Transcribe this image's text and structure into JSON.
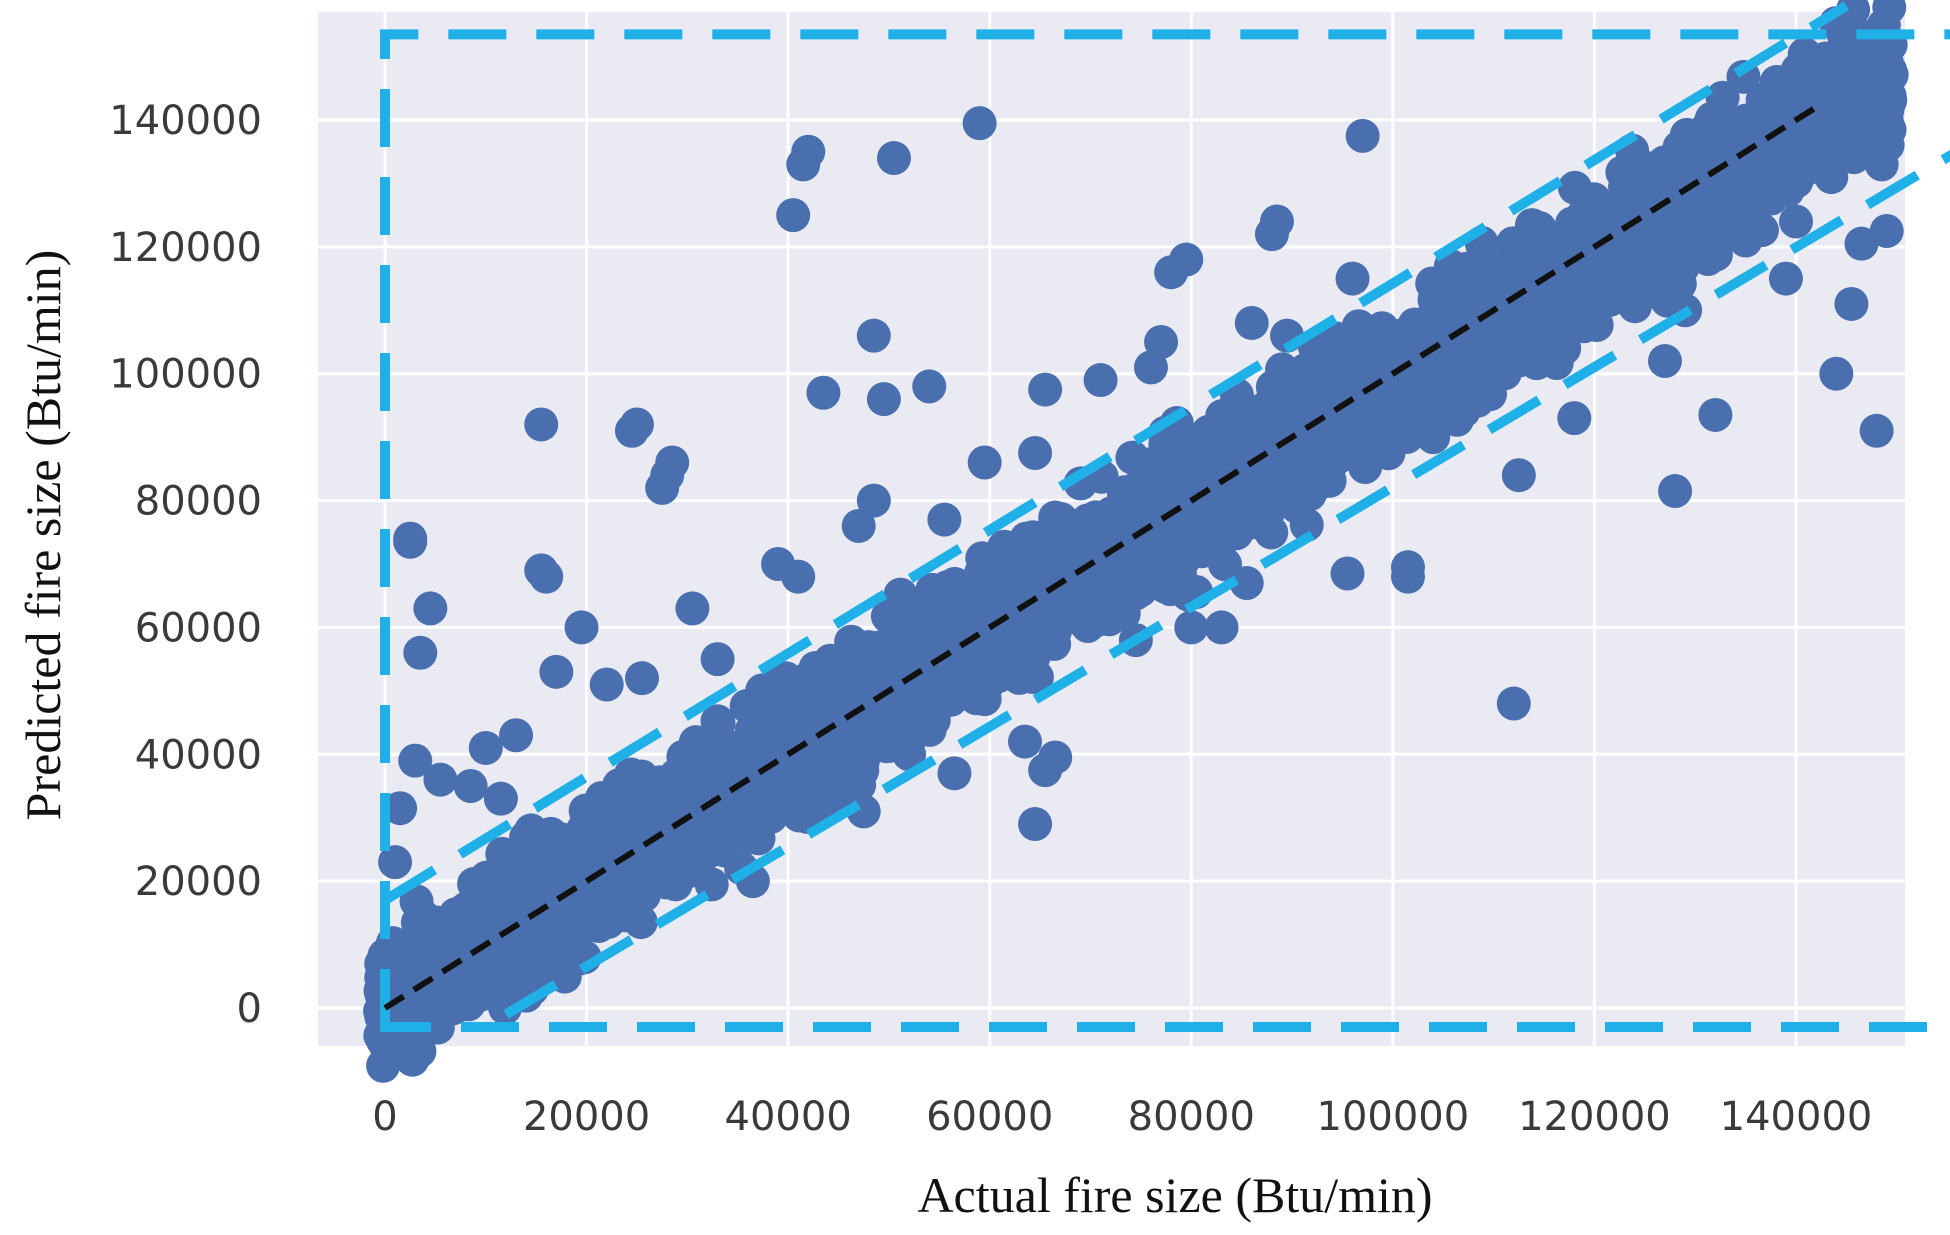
{
  "chart_data": {
    "type": "scatter",
    "title": "",
    "xlabel": "Actual fire size (Btu/min)",
    "ylabel": "Predicted fire size (Btu/min)",
    "xlim": [
      -7000,
      155000
    ],
    "ylim": [
      -6500,
      155000
    ],
    "x_ticks": [
      0,
      20000,
      40000,
      60000,
      80000,
      100000,
      120000,
      140000
    ],
    "y_ticks": [
      0,
      20000,
      40000,
      60000,
      80000,
      100000,
      120000,
      140000
    ],
    "x_tick_labels": [
      "0",
      "20000",
      "40000",
      "60000",
      "80000",
      "100000",
      "120000",
      "140000"
    ],
    "y_tick_labels": [
      "0",
      "20000",
      "40000",
      "60000",
      "80000",
      "100000",
      "120000",
      "140000"
    ],
    "grid": true,
    "legend": "none",
    "colors": {
      "points": "#4a6fae",
      "plot_background": "#eaeaf2",
      "grid": "#ffffff",
      "reference_line": "#111111",
      "band_lines": "#1fb0e8"
    },
    "reference_line": {
      "style": "dashed",
      "color": "#111111",
      "x": [
        0,
        142000
      ],
      "y": [
        0,
        142000
      ]
    },
    "band_lines": [
      {
        "style": "dashed",
        "color": "#1fb0e8",
        "x": [
          0,
          145000
        ],
        "y": [
          17000,
          158000
        ]
      },
      {
        "style": "dashed",
        "color": "#1fb0e8",
        "x": [
          12000,
          157000
        ],
        "y": [
          -1000,
          136000
        ]
      }
    ],
    "outer_box": {
      "style": "dashed",
      "color": "#1fb0e8",
      "x": [
        0,
        157000
      ],
      "y": [
        -3000,
        153500
      ]
    },
    "series": [
      {
        "outliers": [
          {
            "x": 2500,
            "y": 74000
          },
          {
            "x": 2500,
            "y": 73500
          },
          {
            "x": 4500,
            "y": 63000
          },
          {
            "x": 3500,
            "y": 56000
          },
          {
            "x": 15500,
            "y": 92000
          },
          {
            "x": 15500,
            "y": 69000
          },
          {
            "x": 16000,
            "y": 68000
          },
          {
            "x": 17000,
            "y": 53000
          },
          {
            "x": 19500,
            "y": 60000
          },
          {
            "x": 24500,
            "y": 91000
          },
          {
            "x": 25000,
            "y": 92000
          },
          {
            "x": 27500,
            "y": 82000
          },
          {
            "x": 28500,
            "y": 86000
          },
          {
            "x": 28000,
            "y": 84000
          },
          {
            "x": 30500,
            "y": 63000
          },
          {
            "x": 40500,
            "y": 125000
          },
          {
            "x": 41500,
            "y": 133000
          },
          {
            "x": 42000,
            "y": 135000
          },
          {
            "x": 43500,
            "y": 97000
          },
          {
            "x": 48500,
            "y": 106000
          },
          {
            "x": 49500,
            "y": 96000
          },
          {
            "x": 50500,
            "y": 134000
          },
          {
            "x": 54000,
            "y": 98000
          },
          {
            "x": 59000,
            "y": 139500
          },
          {
            "x": 65500,
            "y": 97500
          },
          {
            "x": 64500,
            "y": 29000
          },
          {
            "x": 63500,
            "y": 42000
          },
          {
            "x": 65500,
            "y": 37500
          },
          {
            "x": 66500,
            "y": 39500
          },
          {
            "x": 78000,
            "y": 116000
          },
          {
            "x": 79500,
            "y": 118000
          },
          {
            "x": 80000,
            "y": 60000
          },
          {
            "x": 83000,
            "y": 60000
          },
          {
            "x": 88000,
            "y": 122000
          },
          {
            "x": 88500,
            "y": 124000
          },
          {
            "x": 97000,
            "y": 137500
          },
          {
            "x": 95500,
            "y": 68500
          },
          {
            "x": 101500,
            "y": 69500
          },
          {
            "x": 101500,
            "y": 68000
          },
          {
            "x": 112000,
            "y": 48000
          },
          {
            "x": 127000,
            "y": 102000
          },
          {
            "x": 128000,
            "y": 81500
          },
          {
            "x": 132000,
            "y": 93500
          },
          {
            "x": 144000,
            "y": 100000
          },
          {
            "x": 145500,
            "y": 111000
          },
          {
            "x": 148000,
            "y": 91000
          },
          {
            "x": 149000,
            "y": 122500
          },
          {
            "x": 146500,
            "y": 120500
          },
          {
            "x": 10000,
            "y": 41000
          },
          {
            "x": 13000,
            "y": 43000
          },
          {
            "x": 22000,
            "y": 51000
          },
          {
            "x": 25500,
            "y": 52000
          },
          {
            "x": 33000,
            "y": 55000
          },
          {
            "x": 39000,
            "y": 70000
          },
          {
            "x": 41000,
            "y": 68000
          },
          {
            "x": 47000,
            "y": 76000
          },
          {
            "x": 48500,
            "y": 80000
          },
          {
            "x": 55500,
            "y": 77000
          },
          {
            "x": 59500,
            "y": 86000
          },
          {
            "x": 64500,
            "y": 87500
          },
          {
            "x": 71000,
            "y": 99000
          },
          {
            "x": 76000,
            "y": 101000
          },
          {
            "x": 77000,
            "y": 105000
          },
          {
            "x": 86000,
            "y": 108000
          },
          {
            "x": 89500,
            "y": 106000
          },
          {
            "x": 96000,
            "y": 115000
          },
          {
            "x": 108000,
            "y": 113000
          },
          {
            "x": 120000,
            "y": 126000
          },
          {
            "x": 124500,
            "y": 131000
          },
          {
            "x": 118000,
            "y": 93000
          },
          {
            "x": 112500,
            "y": 84000
          },
          {
            "x": 104000,
            "y": 90000
          },
          {
            "x": 90500,
            "y": 79000
          },
          {
            "x": 85500,
            "y": 67000
          },
          {
            "x": 74500,
            "y": 58000
          },
          {
            "x": 56500,
            "y": 37000
          },
          {
            "x": 52000,
            "y": 40000
          },
          {
            "x": 47500,
            "y": 31000
          },
          {
            "x": 36500,
            "y": 20000
          },
          {
            "x": 30000,
            "y": 21500
          },
          {
            "x": 12500,
            "y": 9000
          },
          {
            "x": 7500,
            "y": 2500
          },
          {
            "x": 1000,
            "y": 23000
          },
          {
            "x": 1500,
            "y": 31500
          },
          {
            "x": 3000,
            "y": 39000
          },
          {
            "x": 5500,
            "y": 36000
          },
          {
            "x": 8500,
            "y": 35000
          },
          {
            "x": 11500,
            "y": 33000
          },
          {
            "x": 14500,
            "y": 28000
          },
          {
            "x": 18500,
            "y": 26500
          },
          {
            "x": 121500,
            "y": 112000
          },
          {
            "x": 126000,
            "y": 117000
          },
          {
            "x": 135000,
            "y": 121000
          },
          {
            "x": 139000,
            "y": 115000
          },
          {
            "x": 140000,
            "y": 124000
          },
          {
            "x": 143500,
            "y": 131000
          },
          {
            "x": 148500,
            "y": 133000
          },
          {
            "x": 117000,
            "y": 104000
          },
          {
            "x": 129000,
            "y": 110000
          }
        ],
        "trend_band": {
          "x_range": [
            -500,
            149500
          ],
          "slope": 0.985,
          "intercept": 500,
          "spread": 5500
        }
      }
    ]
  }
}
